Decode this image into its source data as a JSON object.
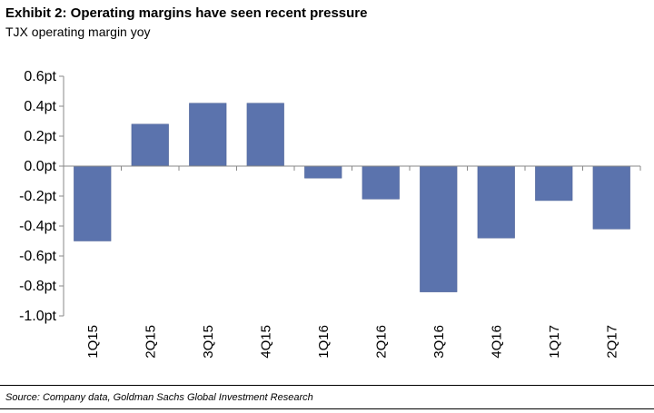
{
  "header": {
    "title": "Exhibit 2: Operating margins have seen recent pressure",
    "subtitle": "TJX operating margin yoy"
  },
  "footer": {
    "source": "Source: Company data, Goldman Sachs Global Investment Research"
  },
  "chart_data": {
    "type": "bar",
    "categories": [
      "1Q15",
      "2Q15",
      "3Q15",
      "4Q15",
      "1Q16",
      "2Q16",
      "3Q16",
      "4Q16",
      "1Q17",
      "2Q17"
    ],
    "values": [
      -0.5,
      0.28,
      0.42,
      0.42,
      -0.08,
      -0.22,
      -0.84,
      -0.48,
      -0.23,
      -0.42
    ],
    "yticks": [
      0.6,
      0.4,
      0.2,
      0.0,
      -0.2,
      -0.4,
      -0.6,
      -0.8,
      -1.0
    ],
    "ytick_labels": [
      "0.6pt",
      "0.4pt",
      "0.2pt",
      "0.0pt",
      "-0.2pt",
      "-0.4pt",
      "-0.6pt",
      "-0.8pt",
      "-1.0pt"
    ],
    "ylim": [
      -1.0,
      0.6
    ],
    "bar_color": "#5b73ad",
    "grid": false,
    "legend": "none"
  }
}
